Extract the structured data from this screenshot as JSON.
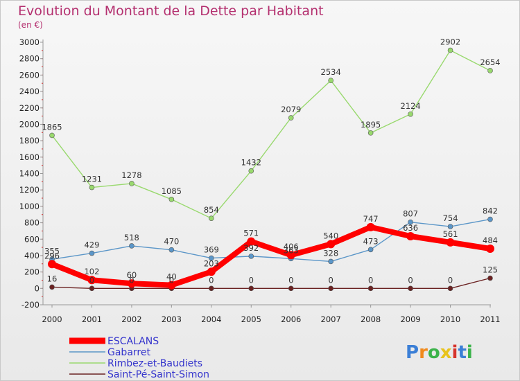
{
  "chart_data": {
    "type": "line",
    "title": "Evolution du Montant de la Dette par Habitant",
    "subtitle": "(en €)",
    "x": [
      "2000",
      "2001",
      "2002",
      "2003",
      "2004",
      "2005",
      "2006",
      "2007",
      "2008",
      "2009",
      "2010",
      "2011"
    ],
    "ylim": [
      -200,
      3000
    ],
    "yticks": [
      -200,
      0,
      200,
      400,
      600,
      800,
      1000,
      1200,
      1400,
      1600,
      1800,
      2000,
      2200,
      2400,
      2600,
      2800,
      3000
    ],
    "grid": false,
    "legend_position": "bottom-left",
    "series": [
      {
        "name": "ESCALANS",
        "color": "#ff0000",
        "values": [
          296,
          102,
          60,
          40,
          203,
          571,
          406,
          540,
          747,
          636,
          561,
          484
        ]
      },
      {
        "name": "Gabarret",
        "color": "#5b96c8",
        "values": [
          355,
          429,
          518,
          470,
          369,
          392,
          363,
          328,
          473,
          807,
          754,
          842
        ]
      },
      {
        "name": "Rimbez-et-Baudiets",
        "color": "#99d96e",
        "values": [
          1865,
          1231,
          1278,
          1085,
          854,
          1432,
          2079,
          2534,
          1895,
          2124,
          2902,
          2654
        ]
      },
      {
        "name": "Saint-Pé-Saint-Simon",
        "color": "#6b2222",
        "values": [
          16,
          0,
          0,
          0,
          0,
          0,
          0,
          0,
          0,
          0,
          0,
          125
        ]
      }
    ]
  },
  "watermark": "Proxiti"
}
